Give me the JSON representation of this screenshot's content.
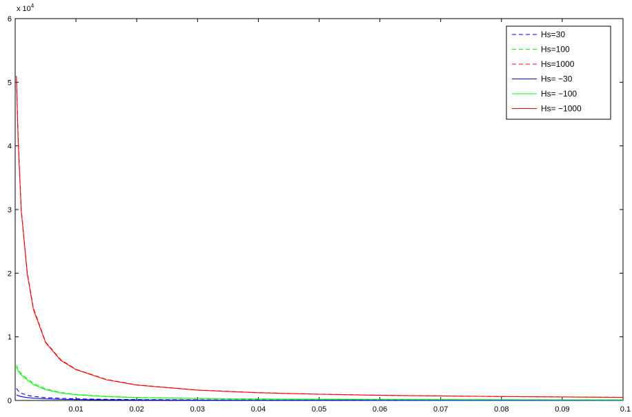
{
  "chart_data": {
    "type": "line",
    "title": "",
    "xlabel": "",
    "ylabel": "",
    "xlim": [
      0,
      0.1
    ],
    "ylim": [
      0,
      60000
    ],
    "exponent_label": {
      "base": "x 10",
      "power": "4"
    },
    "x_ticks": [
      {
        "value": 0.01,
        "label": "0.01"
      },
      {
        "value": 0.02,
        "label": "0.02"
      },
      {
        "value": 0.03,
        "label": "0.03"
      },
      {
        "value": 0.04,
        "label": "0.04"
      },
      {
        "value": 0.05,
        "label": "0.05"
      },
      {
        "value": 0.06,
        "label": "0.06"
      },
      {
        "value": 0.07,
        "label": "0.07"
      },
      {
        "value": 0.08,
        "label": "0.08"
      },
      {
        "value": 0.09,
        "label": "0.09"
      },
      {
        "value": 0.1,
        "label": "0.1"
      }
    ],
    "y_ticks": [
      {
        "value": 0,
        "label": "0"
      },
      {
        "value": 10000,
        "label": "1"
      },
      {
        "value": 20000,
        "label": "2"
      },
      {
        "value": 30000,
        "label": "3"
      },
      {
        "value": 40000,
        "label": "4"
      },
      {
        "value": 50000,
        "label": "5"
      },
      {
        "value": 60000,
        "label": "6"
      }
    ],
    "grid": false,
    "legend_position": "top-right",
    "x": [
      0.0002,
      0.0005,
      0.001,
      0.002,
      0.003,
      0.005,
      0.0075,
      0.01,
      0.015,
      0.02,
      0.03,
      0.04,
      0.05,
      0.06,
      0.08,
      0.1
    ],
    "series": [
      {
        "name": "Hs=30",
        "color": "#0000ff",
        "style": "dashed",
        "values": [
          1900,
          1500,
          1150,
          820,
          640,
          450,
          330,
          260,
          180,
          140,
          95,
          70,
          55,
          45,
          35,
          28
        ]
      },
      {
        "name": "Hs=100",
        "color": "#00ff00",
        "style": "dashed",
        "values": [
          5600,
          4800,
          4200,
          3400,
          2700,
          1800,
          1250,
          950,
          640,
          480,
          320,
          240,
          190,
          160,
          120,
          95
        ]
      },
      {
        "name": "Hs=1000",
        "color": "#ff0000",
        "style": "dashed",
        "values": [
          51000,
          41000,
          30000,
          20000,
          14500,
          9200,
          6400,
          4900,
          3300,
          2450,
          1640,
          1230,
          985,
          820,
          615,
          490
        ]
      },
      {
        "name": "Hs= −30",
        "color": "#0000ff",
        "style": "solid",
        "values": [
          900,
          750,
          600,
          450,
          360,
          260,
          190,
          150,
          100,
          78,
          52,
          40,
          32,
          26,
          20,
          16
        ]
      },
      {
        "name": "Hs= −100",
        "color": "#00ff00",
        "style": "solid",
        "values": [
          5300,
          4600,
          4000,
          3200,
          2500,
          1700,
          1180,
          900,
          600,
          450,
          300,
          225,
          180,
          150,
          112,
          90
        ]
      },
      {
        "name": "Hs= −1000",
        "color": "#ff0000",
        "style": "solid",
        "values": [
          50500,
          40500,
          29800,
          19800,
          14300,
          9100,
          6300,
          4850,
          3250,
          2420,
          1620,
          1215,
          975,
          810,
          610,
          485
        ]
      }
    ]
  }
}
